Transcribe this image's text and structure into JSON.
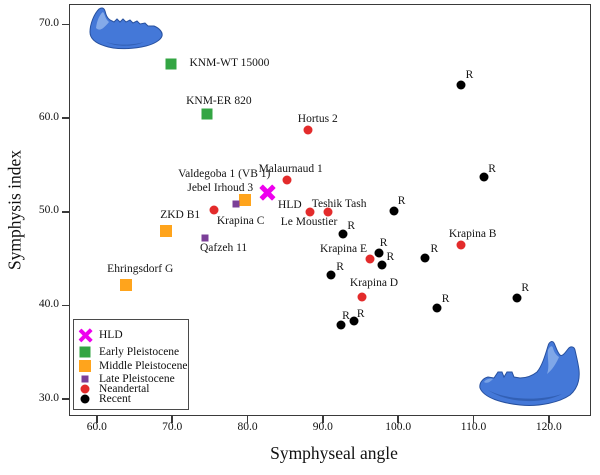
{
  "figure": {
    "background_color": "#ffffff",
    "axis_color": "#3a3a3a",
    "mandible_color": "#4478d8",
    "mandible_highlight": "#8fb3ec",
    "mandible_shadow": "#27509e"
  },
  "legend": {
    "items": [
      {
        "label": "HLD",
        "marker": "x",
        "color": "#ee00ee",
        "size": 13
      },
      {
        "label": "Early Pleistocene",
        "marker": "square",
        "color": "#33a543",
        "size": 11
      },
      {
        "label": "Middle Pleistocene",
        "marker": "square",
        "color": "#ffa41c",
        "size": 12
      },
      {
        "label": "Late Pleistocene",
        "marker": "square",
        "color": "#7b3f98",
        "size": 7
      },
      {
        "label": "Neandertal",
        "marker": "circle",
        "color": "#e32b2b",
        "size": 9
      },
      {
        "label": "Recent",
        "marker": "circle",
        "color": "#000000",
        "size": 9
      }
    ]
  },
  "chart_data": {
    "type": "scatter",
    "title": "",
    "xlabel": "Symphyseal angle",
    "ylabel": "Symphysis index",
    "xlim": [
      56.3,
      125.6
    ],
    "ylim": [
      28.2,
      72.2
    ],
    "grid": false,
    "legend_position": "lower-left",
    "x_ticks": {
      "values": [
        60,
        70,
        80,
        90,
        100,
        110,
        120
      ],
      "labels": [
        "60.0",
        "70.0",
        "80.0",
        "90.0",
        "100.0",
        "110.0",
        "120.0"
      ]
    },
    "y_ticks": {
      "values": [
        30,
        40,
        50,
        60,
        70
      ],
      "labels": [
        "30.0",
        "40.0",
        "50.0",
        "60.0",
        "70.0"
      ]
    },
    "series": [
      {
        "name": "HLD",
        "marker": "x",
        "color": "#ee00ee",
        "size": 15,
        "points": [
          {
            "x": 82.7,
            "y": 52.1,
            "label": "HLD",
            "dx": 22,
            "dy": 13
          }
        ]
      },
      {
        "name": "Early Pleistocene",
        "marker": "square",
        "color": "#33a543",
        "size": 11,
        "points": [
          {
            "x": 69.9,
            "y": 65.8,
            "label": "KNM-WT 15000",
            "dx": 58,
            "dy": -1
          },
          {
            "x": 74.6,
            "y": 60.4,
            "label": "KNM-ER 820",
            "dx": 12,
            "dy": -13
          }
        ]
      },
      {
        "name": "Middle Pleistocene",
        "marker": "square",
        "color": "#ffa41c",
        "size": 12,
        "points": [
          {
            "x": 69.2,
            "y": 48.0,
            "label": "ZKD B1",
            "dx": 14,
            "dy": -16
          },
          {
            "x": 63.9,
            "y": 42.2,
            "label": "Ehringsdorf G",
            "dx": 14,
            "dy": -16
          },
          {
            "x": 79.7,
            "y": 51.3,
            "label": "Jebel Irhoud 3",
            "dx": -25,
            "dy": -12
          }
        ]
      },
      {
        "name": "Late Pleistocene",
        "marker": "square",
        "color": "#7b3f98",
        "size": 7,
        "points": [
          {
            "x": 78.5,
            "y": 50.8,
            "label": "Valdegoba 1 (VB 1)",
            "dx": -12,
            "dy": -30
          },
          {
            "x": 74.3,
            "y": 47.2,
            "label": "Qafzeh 11",
            "dx": 19,
            "dy": 10
          }
        ]
      },
      {
        "name": "Neandertal",
        "marker": "circle",
        "color": "#e32b2b",
        "size": 9,
        "points": [
          {
            "x": 88.0,
            "y": 58.7,
            "label": "Hortus 2",
            "dx": 10,
            "dy": -11
          },
          {
            "x": 85.2,
            "y": 53.4,
            "label": "Malaurnaud 1",
            "dx": 4,
            "dy": -11
          },
          {
            "x": 75.5,
            "y": 50.2,
            "label": "Krapina C",
            "dx": 27,
            "dy": 11
          },
          {
            "x": 88.3,
            "y": 50.0,
            "label": "Le Moustier",
            "dx": -1,
            "dy": 10
          },
          {
            "x": 90.7,
            "y": 50.0,
            "label": "Teshik Tash",
            "dx": 11,
            "dy": -8
          },
          {
            "x": 96.2,
            "y": 45.0,
            "label": "Krapina E",
            "dx": -26,
            "dy": -10
          },
          {
            "x": 108.3,
            "y": 46.5,
            "label": "Krapina B",
            "dx": 12,
            "dy": -11
          },
          {
            "x": 95.2,
            "y": 40.9,
            "label": "Krapina D",
            "dx": 12,
            "dy": -14
          }
        ]
      },
      {
        "name": "Recent",
        "marker": "circle",
        "color": "#000000",
        "size": 9,
        "points": [
          {
            "x": 108.4,
            "y": 63.5,
            "label": "R",
            "dx": 8,
            "dy": -10
          },
          {
            "x": 111.4,
            "y": 53.7,
            "label": "R",
            "dx": 8,
            "dy": -8
          },
          {
            "x": 99.4,
            "y": 50.1,
            "label": "R",
            "dx": 8,
            "dy": -10
          },
          {
            "x": 92.7,
            "y": 47.6,
            "label": "R",
            "dx": 8,
            "dy": -8
          },
          {
            "x": 97.4,
            "y": 45.6,
            "label": "R",
            "dx": 5,
            "dy": -10
          },
          {
            "x": 97.9,
            "y": 44.3,
            "label": "R",
            "dx": 8,
            "dy": -8
          },
          {
            "x": 91.1,
            "y": 43.3,
            "label": "R",
            "dx": 9,
            "dy": -8
          },
          {
            "x": 103.6,
            "y": 45.1,
            "label": "R",
            "dx": 9,
            "dy": -9
          },
          {
            "x": 105.1,
            "y": 39.7,
            "label": "R",
            "dx": 9,
            "dy": -9
          },
          {
            "x": 92.4,
            "y": 37.9,
            "label": "R",
            "dx": 5,
            "dy": -9
          },
          {
            "x": 94.1,
            "y": 38.3,
            "label": "R",
            "dx": 7,
            "dy": -7
          },
          {
            "x": 115.8,
            "y": 40.8,
            "label": "R",
            "dx": 8,
            "dy": -10
          }
        ]
      }
    ]
  }
}
